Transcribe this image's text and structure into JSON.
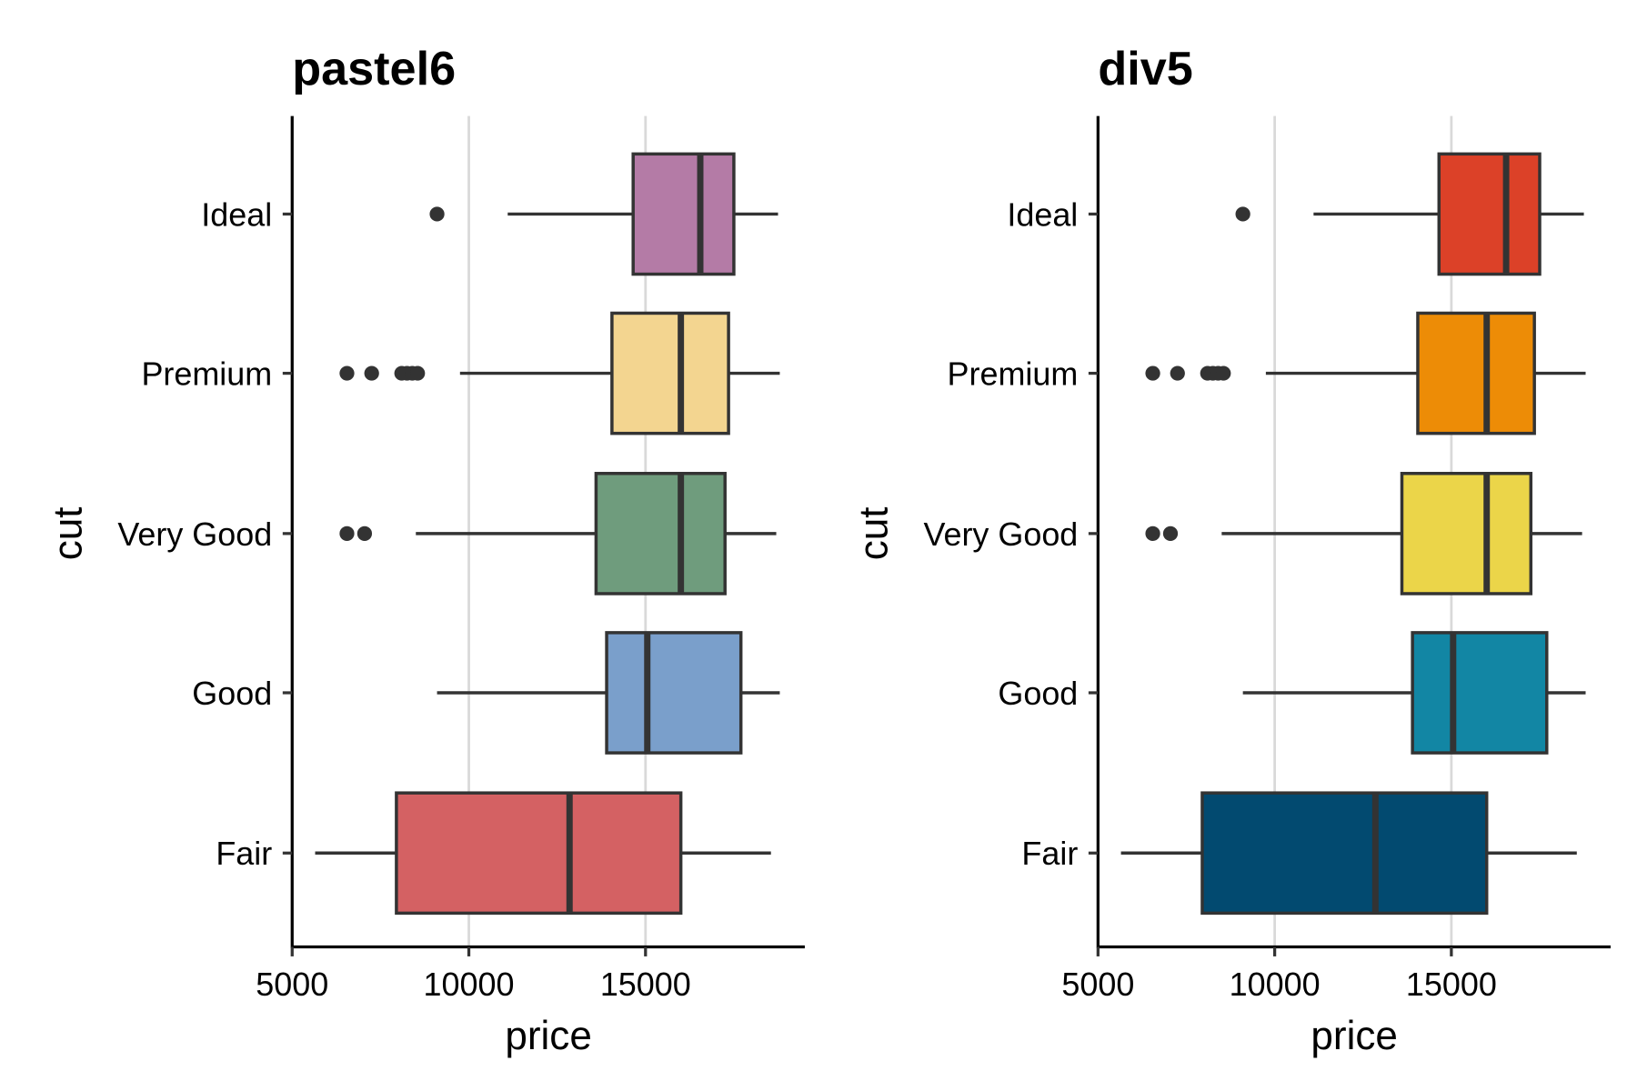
{
  "chart_data": [
    {
      "type": "boxplot",
      "orientation": "horizontal",
      "title": "pastel6",
      "xlabel": "price",
      "ylabel": "cut",
      "xlim": [
        5000,
        19500
      ],
      "xticks": [
        5000,
        10000,
        15000
      ],
      "xtick_labels": [
        "5000",
        "10000",
        "15000"
      ],
      "grid": "vertical major lines",
      "categories": [
        "Ideal",
        "Premium",
        "Very Good",
        "Good",
        "Fair"
      ],
      "colors": [
        "#b47ba6",
        "#f3d590",
        "#6f9c7d",
        "#7a9fcb",
        "#d46163"
      ],
      "boxes": [
        {
          "category": "Ideal",
          "whisker_low": 11100,
          "q1": 14650,
          "median": 16550,
          "q3": 17500,
          "whisker_high": 18750,
          "outliers": [
            9100
          ]
        },
        {
          "category": "Premium",
          "whisker_low": 9750,
          "q1": 14050,
          "median": 16000,
          "q3": 17350,
          "whisker_high": 18800,
          "outliers": [
            6550,
            7250,
            8100,
            8250,
            8400,
            8550
          ]
        },
        {
          "category": "Very Good",
          "whisker_low": 8500,
          "q1": 13600,
          "median": 16000,
          "q3": 17250,
          "whisker_high": 18700,
          "outliers": [
            6550,
            7050
          ]
        },
        {
          "category": "Good",
          "whisker_low": 9100,
          "q1": 13900,
          "median": 15050,
          "q3": 17700,
          "whisker_high": 18800,
          "outliers": []
        },
        {
          "category": "Fair",
          "whisker_low": 5650,
          "q1": 7950,
          "median": 12850,
          "q3": 16000,
          "whisker_high": 18550,
          "outliers": []
        }
      ]
    },
    {
      "type": "boxplot",
      "orientation": "horizontal",
      "title": "div5",
      "xlabel": "price",
      "ylabel": "cut",
      "xlim": [
        5000,
        19500
      ],
      "xticks": [
        5000,
        10000,
        15000
      ],
      "xtick_labels": [
        "5000",
        "10000",
        "15000"
      ],
      "grid": "vertical major lines",
      "categories": [
        "Ideal",
        "Premium",
        "Very Good",
        "Good",
        "Fair"
      ],
      "colors": [
        "#dc4128",
        "#ed8c06",
        "#ebd549",
        "#1286a4",
        "#024a70"
      ],
      "boxes": [
        {
          "category": "Ideal",
          "whisker_low": 11100,
          "q1": 14650,
          "median": 16550,
          "q3": 17500,
          "whisker_high": 18750,
          "outliers": [
            9100
          ]
        },
        {
          "category": "Premium",
          "whisker_low": 9750,
          "q1": 14050,
          "median": 16000,
          "q3": 17350,
          "whisker_high": 18800,
          "outliers": [
            6550,
            7250,
            8100,
            8250,
            8400,
            8550
          ]
        },
        {
          "category": "Very Good",
          "whisker_low": 8500,
          "q1": 13600,
          "median": 16000,
          "q3": 17250,
          "whisker_high": 18700,
          "outliers": [
            6550,
            7050
          ]
        },
        {
          "category": "Good",
          "whisker_low": 9100,
          "q1": 13900,
          "median": 15050,
          "q3": 17700,
          "whisker_high": 18800,
          "outliers": []
        },
        {
          "category": "Fair",
          "whisker_low": 5650,
          "q1": 7950,
          "median": 12850,
          "q3": 16000,
          "whisker_high": 18550,
          "outliers": []
        }
      ]
    }
  ]
}
